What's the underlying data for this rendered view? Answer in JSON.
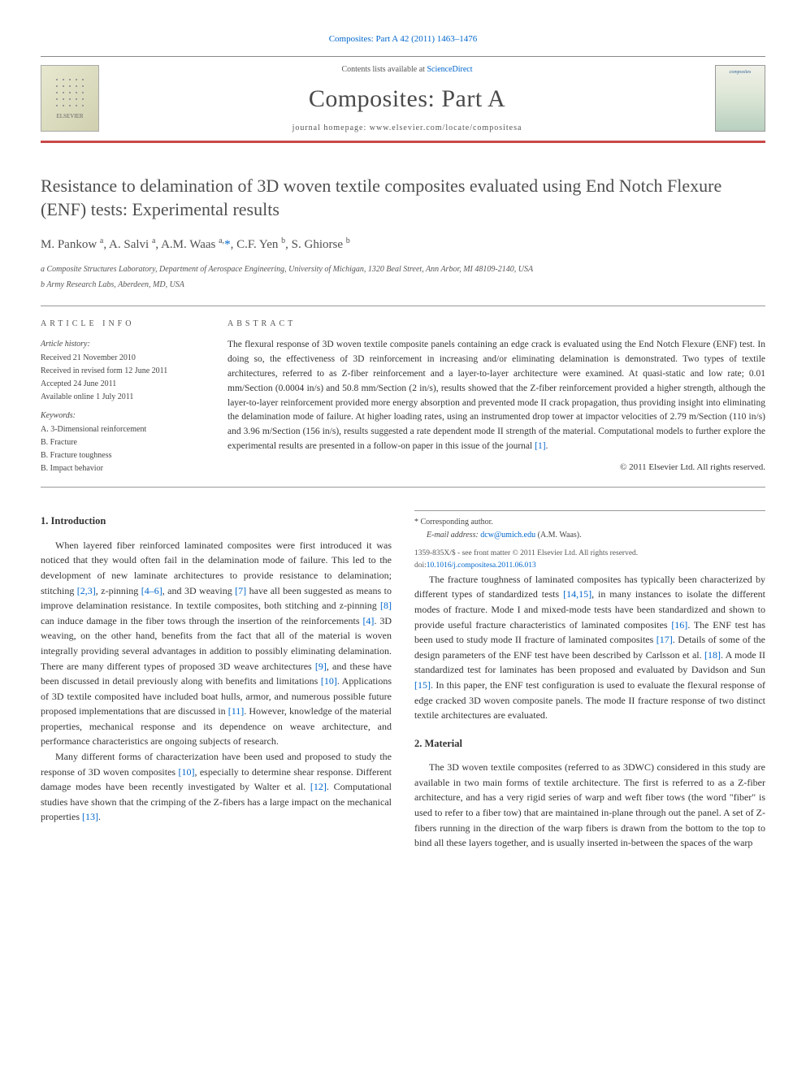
{
  "header": {
    "citation_link": "Composites: Part A 42 (2011) 1463–1476",
    "contents_prefix": "Contents lists available at ",
    "contents_link": "ScienceDirect",
    "journal_name": "Composites: Part A",
    "homepage_label": "journal homepage: www.elsevier.com/locate/compositesa",
    "elsevier_label": "ELSEVIER",
    "cover_label": "composites"
  },
  "article": {
    "title": "Resistance to delamination of 3D woven textile composites evaluated using End Notch Flexure (ENF) tests: Experimental results",
    "authors_html": "M. Pankow <sup>a</sup>, A. Salvi <sup>a</sup>, A.M. Waas <sup>a,</sup>",
    "corr_mark": "*",
    "authors_tail": ", C.F. Yen <sup>b</sup>, S. Ghiorse <sup>b</sup>",
    "affiliations": [
      "a Composite Structures Laboratory, Department of Aerospace Engineering, University of Michigan, 1320 Beal Street, Ann Arbor, MI 48109-2140, USA",
      "b Army Research Labs, Aberdeen, MD, USA"
    ]
  },
  "article_info": {
    "heading": "ARTICLE INFO",
    "history_heading": "Article history:",
    "history": [
      "Received 21 November 2010",
      "Received in revised form 12 June 2011",
      "Accepted 24 June 2011",
      "Available online 1 July 2011"
    ],
    "keywords_heading": "Keywords:",
    "keywords": [
      "A. 3-Dimensional reinforcement",
      "B. Fracture",
      "B. Fracture toughness",
      "B. Impact behavior"
    ]
  },
  "abstract": {
    "heading": "ABSTRACT",
    "text": "The flexural response of 3D woven textile composite panels containing an edge crack is evaluated using the End Notch Flexure (ENF) test. In doing so, the effectiveness of 3D reinforcement in increasing and/or eliminating delamination is demonstrated. Two types of textile architectures, referred to as Z-fiber reinforcement and a layer-to-layer architecture were examined. At quasi-static and low rate; 0.01 mm/Section (0.0004 in/s) and 50.8 mm/Section (2 in/s), results showed that the Z-fiber reinforcement provided a higher strength, although the layer-to-layer reinforcement provided more energy absorption and prevented mode II crack propagation, thus providing insight into eliminating the delamination mode of failure. At higher loading rates, using an instrumented drop tower at impactor velocities of 2.79 m/Section (110 in/s) and 3.96 m/Section (156 in/s), results suggested a rate dependent mode II strength of the material. Computational models to further explore the experimental results are presented in a follow-on paper in this issue of the journal ",
    "ref": "[1]",
    "tail": ".",
    "copyright": "© 2011 Elsevier Ltd. All rights reserved."
  },
  "sections": {
    "intro_heading": "1. Introduction",
    "intro_p1a": "When layered fiber reinforced laminated composites were first introduced it was noticed that they would often fail in the delamination mode of failure. This led to the development of new laminate architectures to provide resistance to delamination; stitching ",
    "r_23": "[2,3]",
    "intro_p1b": ", z-pinning ",
    "r_46": "[4–6]",
    "intro_p1c": ", and 3D weaving ",
    "r_7": "[7]",
    "intro_p1d": " have all been suggested as means to improve delamination resistance. In textile composites, both stitching and z-pinning ",
    "r_8": "[8]",
    "intro_p1e": " can induce damage in the fiber tows through the insertion of the reinforcements ",
    "r_4": "[4]",
    "intro_p1f": ". 3D weaving, on the other hand, benefits from the fact that all of the material is woven integrally providing several advantages in addition to possibly eliminating delamination. There are many different types of proposed 3D weave architectures ",
    "r_9": "[9]",
    "intro_p1g": ", and these have been discussed in detail previously along with benefits and limitations ",
    "r_10": "[10]",
    "intro_p1h": ". Applications of 3D textile composited have included boat hulls, armor, and numerous possible future proposed implementations that are discussed in ",
    "r_11": "[11]",
    "intro_p1i": ". However, knowledge of the material properties, mechanical response and its dependence on weave architecture, and performance characteristics are ongoing subjects of research.",
    "intro_p2a": "Many different forms of characterization have been used and proposed to study the response of 3D woven composites ",
    "r_10b": "[10]",
    "intro_p2b": ", especially to determine shear response. Different damage modes have been recently investigated by Walter et al. ",
    "r_12": "[12]",
    "intro_p2c": ". Computational studies have shown that the crimping of the Z-fibers has a large impact on the mechanical properties ",
    "r_13": "[13]",
    "intro_p2d": ".",
    "intro_p3a": "The fracture toughness of laminated composites has typically been characterized by different types of standardized tests ",
    "r_1415": "[14,15]",
    "intro_p3b": ", in many instances to isolate the different modes of fracture. Mode I and mixed-mode tests have been standardized and shown to provide useful fracture characteristics of laminated composites ",
    "r_16": "[16]",
    "intro_p3c": ". The ENF test has been used to study mode II fracture of laminated composites ",
    "r_17": "[17]",
    "intro_p3d": ". Details of some of the design parameters of the ENF test have been described by Carlsson et al. ",
    "r_18": "[18]",
    "intro_p3e": ". A mode II standardized test for laminates has been proposed and evaluated by Davidson and Sun ",
    "r_15": "[15]",
    "intro_p3f": ". In this paper, the ENF test configuration is used to evaluate the flexural response of edge cracked 3D woven composite panels. The mode II fracture response of two distinct textile architectures are evaluated.",
    "material_heading": "2. Material",
    "material_p1": "The 3D woven textile composites (referred to as 3DWC) considered in this study are available in two main forms of textile architecture. The first is referred to as a Z-fiber architecture, and has a very rigid series of warp and weft fiber tows (the word \"fiber\" is used to refer to a fiber tow) that are maintained in-plane through out the panel. A set of Z-fibers running in the direction of the warp fibers is drawn from the bottom to the top to bind all these layers together, and is usually inserted in-between the spaces of the warp"
  },
  "footnote": {
    "corr_label": "* Corresponding author.",
    "email_label": "E-mail address: ",
    "email": "dcw@umich.edu",
    "email_tail": " (A.M. Waas).",
    "issn_line": "1359-835X/$ - see front matter © 2011 Elsevier Ltd. All rights reserved.",
    "doi_prefix": "doi:",
    "doi": "10.1016/j.compositesa.2011.06.013"
  },
  "colors": {
    "link": "#0066cc",
    "rule": "#c84848",
    "text": "#333333"
  }
}
